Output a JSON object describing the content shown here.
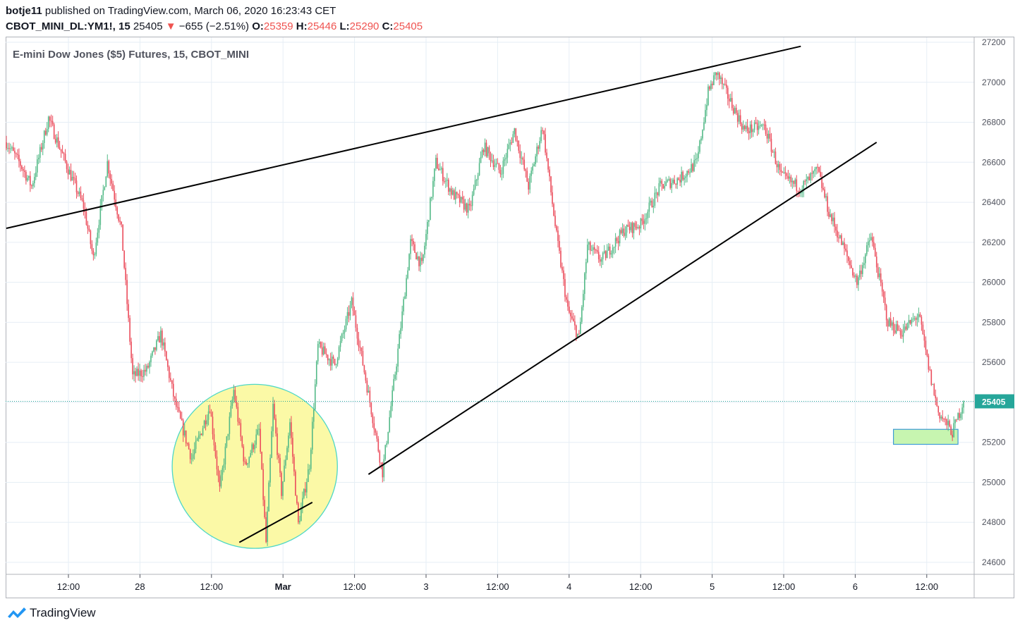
{
  "header": {
    "author": "botje11",
    "published_text": "published on TradingView.com, March 06, 2020 16:23:43 CET",
    "symbol_label": "CBOT_MINI_DL:YM1!, 15",
    "last": "25405",
    "change_arrow": "▼",
    "change": "−655 (−2.51%)",
    "o_label": "O:",
    "o_value": "25359",
    "h_label": "H:",
    "h_value": "25446",
    "l_label": "L:",
    "l_value": "25290",
    "c_label": "C:",
    "c_value": "25405"
  },
  "colors": {
    "up": "#53b987",
    "down": "#eb4d5c",
    "price_line": "#26a69a",
    "grid": "#e6eef5",
    "circle_fill": "#fbf9a6",
    "circle_stroke": "#4ed7c6",
    "box_fill": "#c7f5b0",
    "box_stroke": "#3d9bd6",
    "trendline": "#000000"
  },
  "footer": {
    "brand": "TradingView",
    "logo_icon": "tradingview-logo-icon"
  },
  "chart_data": {
    "type": "candlestick",
    "title": "E-mini Dow Jones ($5) Futures, 15, CBOT_MINI",
    "ylim": [
      24540,
      27220
    ],
    "y_ticks": [
      24600,
      24800,
      25000,
      25200,
      25400,
      25600,
      25800,
      26000,
      26200,
      26400,
      26600,
      26800,
      27000,
      27200
    ],
    "x_ticks": [
      "12:00",
      "28",
      "12:00",
      "Mar",
      "12:00",
      "3",
      "12:00",
      "4",
      "12:00",
      "5",
      "12:00",
      "6",
      "12:00"
    ],
    "bold_x_ticks": [
      "Mar"
    ],
    "last_price": 25405,
    "price_path": [
      [
        0,
        26700
      ],
      [
        10,
        26590
      ],
      [
        18,
        26480
      ],
      [
        30,
        26820
      ],
      [
        42,
        26600
      ],
      [
        55,
        26380
      ],
      [
        62,
        26120
      ],
      [
        72,
        26600
      ],
      [
        82,
        26260
      ],
      [
        90,
        25530
      ],
      [
        100,
        25560
      ],
      [
        110,
        25740
      ],
      [
        120,
        25400
      ],
      [
        132,
        25120
      ],
      [
        145,
        25380
      ],
      [
        152,
        24960
      ],
      [
        162,
        25460
      ],
      [
        170,
        25080
      ],
      [
        180,
        25260
      ],
      [
        185,
        24700
      ],
      [
        190,
        25380
      ],
      [
        196,
        24950
      ],
      [
        202,
        25300
      ],
      [
        208,
        24790
      ],
      [
        216,
        25090
      ],
      [
        222,
        25680
      ],
      [
        234,
        25590
      ],
      [
        246,
        25900
      ],
      [
        258,
        25440
      ],
      [
        268,
        25050
      ],
      [
        278,
        25600
      ],
      [
        288,
        26200
      ],
      [
        296,
        26080
      ],
      [
        306,
        26600
      ],
      [
        318,
        26440
      ],
      [
        330,
        26360
      ],
      [
        340,
        26680
      ],
      [
        352,
        26550
      ],
      [
        362,
        26760
      ],
      [
        372,
        26480
      ],
      [
        382,
        26780
      ],
      [
        392,
        26230
      ],
      [
        400,
        25860
      ],
      [
        408,
        25720
      ],
      [
        414,
        26180
      ],
      [
        424,
        26110
      ],
      [
        440,
        26260
      ],
      [
        452,
        26290
      ],
      [
        466,
        26480
      ],
      [
        480,
        26520
      ],
      [
        492,
        26600
      ],
      [
        500,
        26950
      ],
      [
        506,
        27050
      ],
      [
        514,
        26930
      ],
      [
        526,
        26760
      ],
      [
        540,
        26780
      ],
      [
        552,
        26530
      ],
      [
        566,
        26470
      ],
      [
        578,
        26560
      ],
      [
        586,
        26350
      ],
      [
        596,
        26180
      ],
      [
        606,
        26000
      ],
      [
        616,
        26230
      ],
      [
        628,
        25800
      ],
      [
        638,
        25750
      ],
      [
        650,
        25840
      ],
      [
        658,
        25540
      ],
      [
        664,
        25350
      ],
      [
        674,
        25250
      ],
      [
        682,
        25405
      ]
    ],
    "trendlines": [
      {
        "from": [
          0,
          26270
        ],
        "to": [
          566,
          27180
        ]
      },
      {
        "from": [
          258,
          25040
        ],
        "to": [
          620,
          26700
        ]
      },
      {
        "from": [
          166,
          24700
        ],
        "to": [
          218,
          24900
        ]
      }
    ],
    "highlight_ellipse": {
      "center": [
        177,
        25080
      ],
      "radius_bars": 55,
      "radius_price": 410
    },
    "highlight_box": {
      "x": [
        632,
        678
      ],
      "y": [
        25190,
        25265
      ]
    }
  }
}
